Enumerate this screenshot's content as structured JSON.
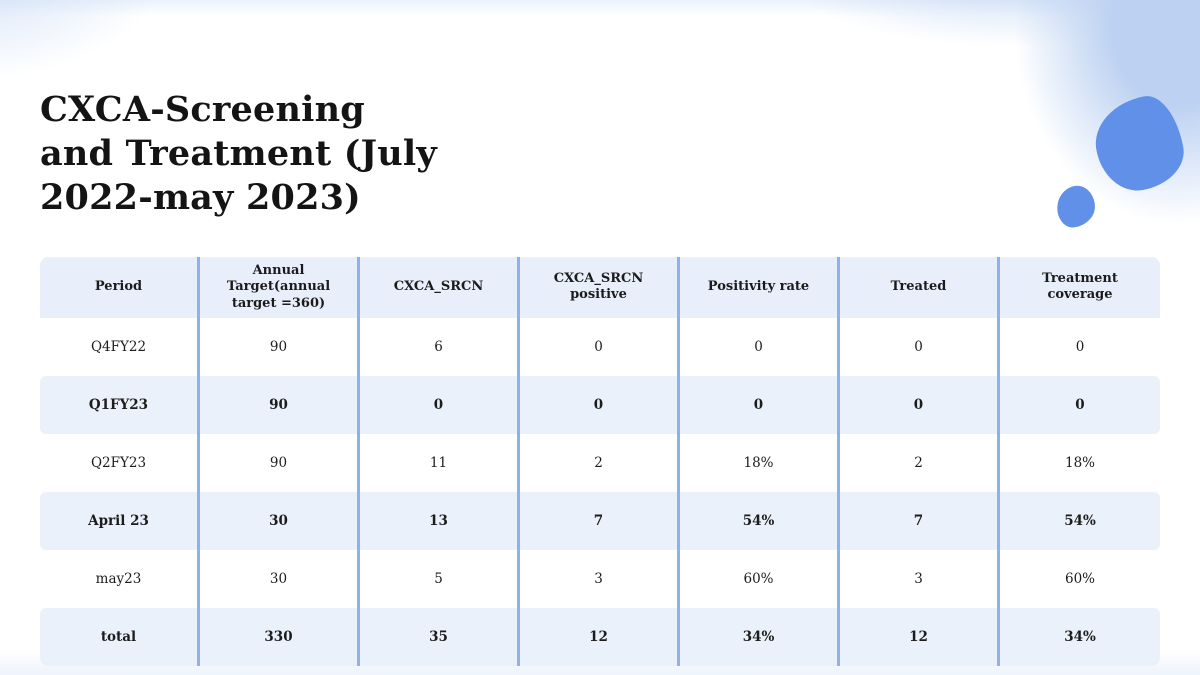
{
  "slide": {
    "title_full": "CXCA-Screening and Treatment (July 2022-may 2023)",
    "title_lines": [
      "CXCA-Screening",
      "and Treatment (July",
      "2022-may 2023)"
    ]
  },
  "colors": {
    "blob_blue": "#6090e8",
    "corner_glow": "#bdd2f2",
    "header_row_bg": "#e9effa",
    "highlight_row_bg": "#ebf1fa",
    "column_separator": "#8fb2e6",
    "text": "#1c1c1c"
  },
  "table": {
    "columns": [
      "Period",
      "Annual Target(annual target =360)",
      "CXCA_SRCN",
      "CXCA_SRCN positive",
      "Positivity rate",
      "Treated",
      "Treatment coverage"
    ],
    "rows": [
      {
        "highlight": false,
        "cells": [
          "Q4FY22",
          "90",
          "6",
          "0",
          "0",
          "0",
          "0"
        ]
      },
      {
        "highlight": true,
        "cells": [
          "Q1FY23",
          "90",
          "0",
          "0",
          "0",
          "0",
          "0"
        ]
      },
      {
        "highlight": false,
        "cells": [
          "Q2FY23",
          "90",
          "11",
          "2",
          "18%",
          "2",
          "18%"
        ]
      },
      {
        "highlight": true,
        "cells": [
          "April 23",
          "30",
          "13",
          "7",
          "54%",
          "7",
          "54%"
        ]
      },
      {
        "highlight": false,
        "cells": [
          "may23",
          "30",
          "5",
          "3",
          "60%",
          "3",
          "60%"
        ]
      },
      {
        "highlight": true,
        "cells": [
          "total",
          "330",
          "35",
          "12",
          "34%",
          "12",
          "34%"
        ]
      }
    ]
  }
}
